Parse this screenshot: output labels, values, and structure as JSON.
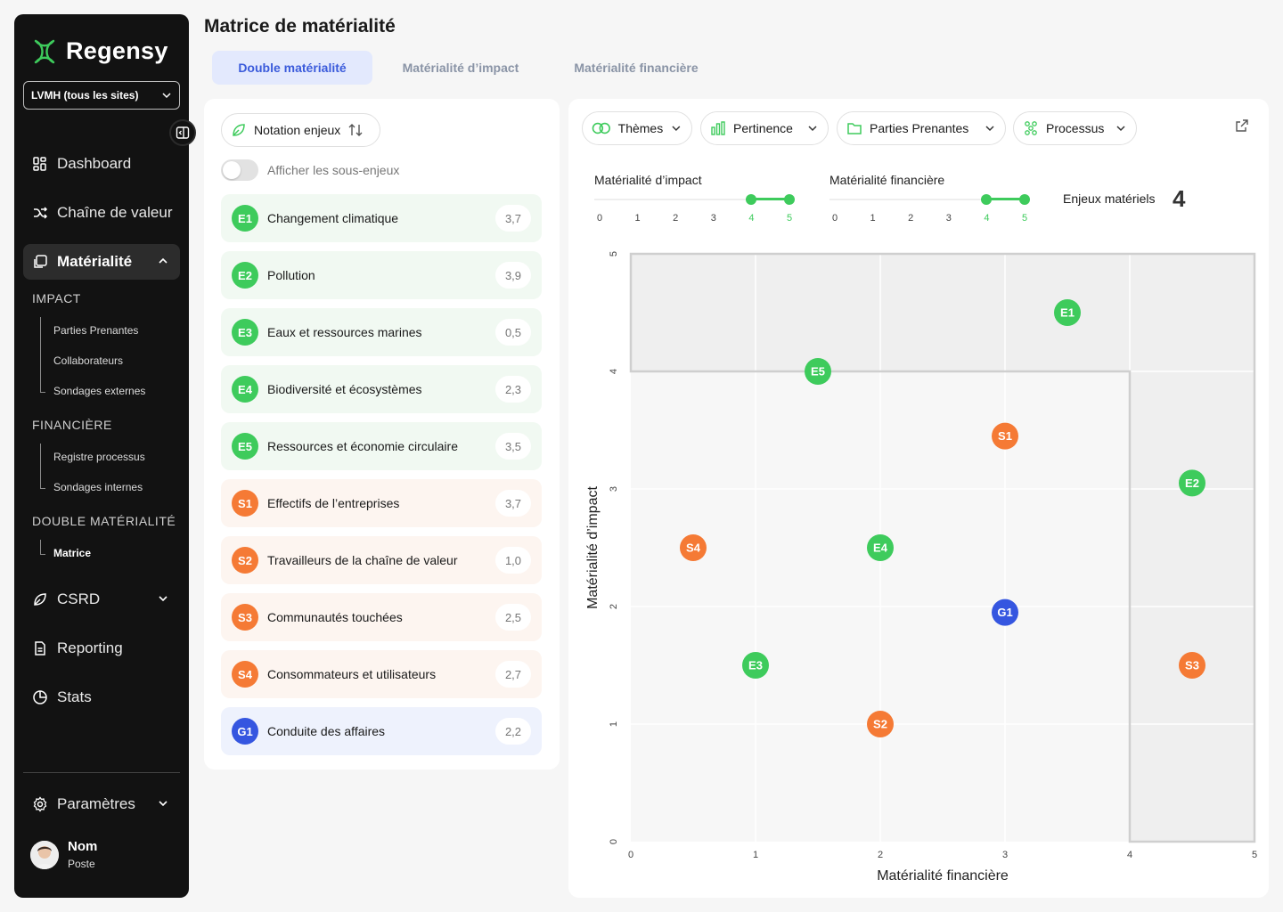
{
  "brand": {
    "name": "Regensy",
    "accent": "#3ecb5c",
    "env_color": "#3ecb5c",
    "social_color": "#f57a35",
    "gov_color": "#3556e0"
  },
  "sidebar": {
    "site_select": "LVMH (tous les sites)",
    "nav": {
      "dashboard": "Dashboard",
      "chaine": "Chaîne de valeur",
      "materialite": "Matérialité",
      "csrd": "CSRD",
      "reporting": "Reporting",
      "stats": "Stats",
      "parametres": "Paramètres"
    },
    "impact": {
      "title": "IMPACT",
      "items": [
        "Parties Prenantes",
        "Collaborateurs",
        "Sondages externes"
      ]
    },
    "financiere": {
      "title": "FINANCIÈRE",
      "items": [
        "Registre processus",
        "Sondages internes"
      ]
    },
    "double": {
      "title": "DOUBLE MATÉRIALITÉ",
      "items": [
        "Matrice"
      ]
    },
    "user": {
      "name": "Nom",
      "role": "Poste"
    }
  },
  "page": {
    "title": "Matrice de matérialité",
    "tabs": [
      "Double matérialité",
      "Matérialité d’impact",
      "Matérialité financière"
    ]
  },
  "left": {
    "sort_label": "Notation enjeux",
    "toggle_label": "Afficher les sous-enjeux",
    "issues": [
      {
        "code": "E1",
        "label": "Changement climatique",
        "score": "3,7",
        "cat": "e"
      },
      {
        "code": "E2",
        "label": "Pollution",
        "score": "3,9",
        "cat": "e"
      },
      {
        "code": "E3",
        "label": "Eaux et ressources marines",
        "score": "0,5",
        "cat": "e"
      },
      {
        "code": "E4",
        "label": "Biodiversité et écosystèmes",
        "score": "2,3",
        "cat": "e"
      },
      {
        "code": "E5",
        "label": "Ressources et économie circulaire",
        "score": "3,5",
        "cat": "e"
      },
      {
        "code": "S1",
        "label": "Effectifs de l’entreprises",
        "score": "3,7",
        "cat": "s"
      },
      {
        "code": "S2",
        "label": "Travailleurs de la chaîne de valeur",
        "score": "1,0",
        "cat": "s"
      },
      {
        "code": "S3",
        "label": "Communautés touchées",
        "score": "2,5",
        "cat": "s"
      },
      {
        "code": "S4",
        "label": "Consommateurs et utilisateurs",
        "score": "2,7",
        "cat": "s"
      },
      {
        "code": "G1",
        "label": "Conduite des affaires",
        "score": "2,2",
        "cat": "g"
      }
    ]
  },
  "right": {
    "filters": [
      "Thèmes",
      "Pertinence",
      "Parties Prenantes",
      "Processus"
    ],
    "impact_slider": {
      "title": "Matérialité d’impact",
      "ticks": [
        "0",
        "1",
        "2",
        "3",
        "4",
        "5"
      ],
      "range": [
        4,
        5
      ]
    },
    "fin_slider": {
      "title": "Matérialité financière",
      "ticks": [
        "0",
        "1",
        "2",
        "3",
        "4",
        "5"
      ],
      "range": [
        4,
        5
      ]
    },
    "enjeux_label": "Enjeux matériels",
    "enjeux_count": "4"
  },
  "chart_data": {
    "type": "scatter",
    "xlabel": "Matérialité financière",
    "ylabel": "Matérialité d’impact",
    "xlim": [
      0,
      5
    ],
    "ylim": [
      0,
      5
    ],
    "xticks": [
      "0",
      "1",
      "2",
      "3",
      "4",
      "5"
    ],
    "yticks": [
      "0",
      "1",
      "2",
      "3",
      "4",
      "5"
    ],
    "threshold": {
      "x": 4,
      "y": 4
    },
    "points": [
      {
        "code": "E1",
        "x": 3.5,
        "y": 4.5,
        "cat": "e"
      },
      {
        "code": "E5",
        "x": 1.5,
        "y": 4.0,
        "cat": "e"
      },
      {
        "code": "S1",
        "x": 3.0,
        "y": 3.45,
        "cat": "s"
      },
      {
        "code": "E2",
        "x": 4.5,
        "y": 3.05,
        "cat": "e"
      },
      {
        "code": "S4",
        "x": 0.5,
        "y": 2.5,
        "cat": "s"
      },
      {
        "code": "E4",
        "x": 2.0,
        "y": 2.5,
        "cat": "e"
      },
      {
        "code": "G1",
        "x": 3.0,
        "y": 1.95,
        "cat": "g"
      },
      {
        "code": "E3",
        "x": 1.0,
        "y": 1.5,
        "cat": "e"
      },
      {
        "code": "S3",
        "x": 4.5,
        "y": 1.5,
        "cat": "s"
      },
      {
        "code": "S2",
        "x": 2.0,
        "y": 1.0,
        "cat": "s"
      }
    ]
  }
}
